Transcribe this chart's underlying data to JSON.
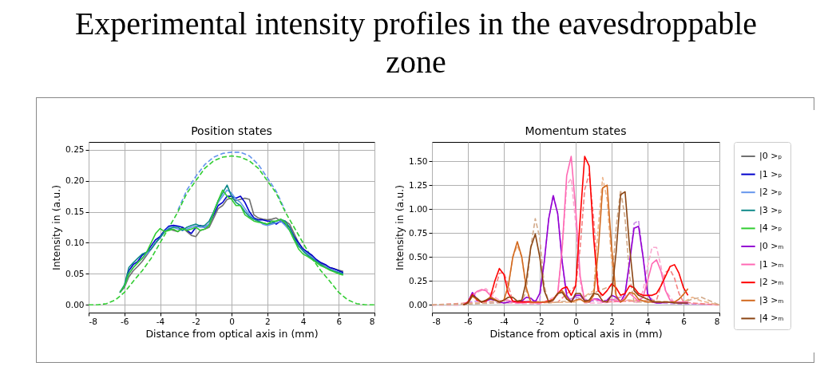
{
  "chart_data": [
    {
      "type": "line",
      "title": "Experimental intensity profiles in the eavesdroppable zone",
      "subtitle": "Position states",
      "xlabel": "Distance from optical axis in (mm)",
      "ylabel": "Intensity in (a.u.)",
      "xlim": [
        -8,
        8
      ],
      "ylim": [
        -0.0125,
        0.2625
      ],
      "xticks": [
        -8,
        -6,
        -4,
        -2,
        0,
        2,
        4,
        6,
        8
      ],
      "yticks": [
        {
          "value": 0,
          "label": "0.00"
        },
        0.05,
        {
          "value": 0.1,
          "label": "0.10"
        },
        0.15,
        {
          "value": 0.2,
          "label": "0.20"
        },
        0.25
      ],
      "grid": true,
      "x": [
        -6.25,
        -6,
        -5.75,
        -5.5,
        -5.25,
        -5,
        -4.75,
        -4.5,
        -4.25,
        -4,
        -3.75,
        -3.5,
        -3.25,
        -3,
        -2.75,
        -2.5,
        -2.25,
        -2,
        -1.75,
        -1.5,
        -1.25,
        -1,
        -0.75,
        -0.5,
        -0.25,
        0,
        0.25,
        0.5,
        0.75,
        1,
        1.25,
        1.5,
        1.75,
        2,
        2.25,
        2.5,
        2.75,
        3,
        3.25,
        3.5,
        3.75,
        4,
        4.25,
        4.5,
        4.75,
        5,
        5.25,
        5.5,
        5.75,
        6,
        6.25
      ],
      "series": [
        {
          "color": "#6495ed",
          "line_style": "dashed",
          "x": [
            -3,
            -2.5,
            -2,
            -1.5,
            -1,
            -0.5,
            0,
            0.5,
            1,
            1.5,
            2,
            2.5,
            3
          ],
          "values": [
            0.153,
            0.185,
            0.207,
            0.226,
            0.238,
            0.244,
            0.246,
            0.246,
            0.24,
            0.226,
            0.205,
            0.183,
            0.152
          ]
        },
        {
          "color": "#32cd32",
          "line_style": "dashed",
          "x": [
            -8,
            -7.5,
            -7,
            -6.5,
            -6,
            -5.5,
            -5,
            -4.5,
            -4,
            -3.5,
            -3,
            -2.5,
            -2,
            -1.5,
            -1,
            -0.5,
            0,
            0.5,
            1,
            1.5,
            2,
            2.5,
            3,
            3.5,
            4,
            4.5,
            5,
            5.5,
            6,
            6.5,
            7,
            7.5,
            8
          ],
          "values": [
            0,
            0,
            0.002,
            0.008,
            0.02,
            0.038,
            0.055,
            0.075,
            0.1,
            0.125,
            0.15,
            0.18,
            0.2,
            0.22,
            0.232,
            0.238,
            0.24,
            0.238,
            0.232,
            0.22,
            0.2,
            0.18,
            0.15,
            0.125,
            0.1,
            0.075,
            0.055,
            0.038,
            0.02,
            0.008,
            0.002,
            0,
            0
          ]
        },
        {
          "name": "|0 >ₚ",
          "color": "#707070",
          "values": [
            0.02,
            0.028,
            0.045,
            0.055,
            0.062,
            0.07,
            0.08,
            0.09,
            0.1,
            0.11,
            0.12,
            0.122,
            0.12,
            0.118,
            0.125,
            0.118,
            0.112,
            0.11,
            0.12,
            0.122,
            0.125,
            0.14,
            0.155,
            0.16,
            0.17,
            0.172,
            0.168,
            0.17,
            0.172,
            0.17,
            0.145,
            0.14,
            0.138,
            0.137,
            0.138,
            0.14,
            0.135,
            0.135,
            0.13,
            0.115,
            0.1,
            0.09,
            0.085,
            0.078,
            0.072,
            0.067,
            0.063,
            0.06,
            0.058,
            0.056,
            0.054
          ]
        },
        {
          "name": "|1 >ₚ",
          "color": "#0000cc",
          "values": [
            0.02,
            0.03,
            0.055,
            0.065,
            0.07,
            0.08,
            0.085,
            0.095,
            0.105,
            0.11,
            0.12,
            0.127,
            0.128,
            0.127,
            0.125,
            0.12,
            0.115,
            0.125,
            0.128,
            0.125,
            0.13,
            0.145,
            0.16,
            0.165,
            0.175,
            0.175,
            0.172,
            0.175,
            0.165,
            0.15,
            0.14,
            0.137,
            0.137,
            0.135,
            0.135,
            0.13,
            0.135,
            0.13,
            0.125,
            0.11,
            0.1,
            0.09,
            0.085,
            0.08,
            0.073,
            0.068,
            0.065,
            0.06,
            0.058,
            0.055,
            0.052
          ]
        },
        {
          "name": "|2 >ₚ",
          "color": "#6495ed",
          "values": [
            0.02,
            0.03,
            0.05,
            0.06,
            0.068,
            0.075,
            0.082,
            0.09,
            0.1,
            0.108,
            0.118,
            0.125,
            0.125,
            0.122,
            0.12,
            0.122,
            0.125,
            0.127,
            0.125,
            0.125,
            0.13,
            0.15,
            0.165,
            0.175,
            0.185,
            0.18,
            0.17,
            0.165,
            0.155,
            0.145,
            0.138,
            0.135,
            0.13,
            0.128,
            0.13,
            0.132,
            0.135,
            0.128,
            0.12,
            0.105,
            0.095,
            0.088,
            0.082,
            0.077,
            0.07,
            0.065,
            0.062,
            0.058,
            0.055,
            0.052,
            0.05
          ]
        },
        {
          "name": "|3 >ₚ",
          "color": "#108a8a",
          "values": [
            0.02,
            0.032,
            0.06,
            0.068,
            0.075,
            0.082,
            0.085,
            0.09,
            0.1,
            0.108,
            0.118,
            0.122,
            0.125,
            0.125,
            0.12,
            0.125,
            0.128,
            0.13,
            0.127,
            0.128,
            0.135,
            0.15,
            0.168,
            0.18,
            0.193,
            0.175,
            0.165,
            0.16,
            0.15,
            0.142,
            0.138,
            0.135,
            0.132,
            0.13,
            0.132,
            0.135,
            0.138,
            0.135,
            0.125,
            0.108,
            0.095,
            0.087,
            0.08,
            0.075,
            0.07,
            0.065,
            0.06,
            0.057,
            0.054,
            0.052,
            0.05
          ]
        },
        {
          "name": "|4 >ₚ",
          "color": "#32cd32",
          "values": [
            0.02,
            0.03,
            0.05,
            0.06,
            0.068,
            0.075,
            0.085,
            0.1,
            0.115,
            0.123,
            0.118,
            0.12,
            0.122,
            0.118,
            0.123,
            0.12,
            0.122,
            0.125,
            0.12,
            0.122,
            0.128,
            0.148,
            0.168,
            0.185,
            0.175,
            0.17,
            0.16,
            0.16,
            0.145,
            0.14,
            0.135,
            0.133,
            0.132,
            0.13,
            0.135,
            0.135,
            0.138,
            0.132,
            0.12,
            0.105,
            0.09,
            0.082,
            0.078,
            0.073,
            0.068,
            0.063,
            0.06,
            0.056,
            0.053,
            0.05,
            0.048
          ]
        }
      ]
    },
    {
      "type": "line",
      "title": "Momentum states",
      "xlabel": "Distance from optical axis in (mm)",
      "ylabel": "Intensity in (a.u.)",
      "xlim": [
        -8,
        8
      ],
      "ylim": [
        -0.08,
        1.7
      ],
      "xticks": [
        -8,
        -6,
        -4,
        -2,
        0,
        2,
        4,
        6,
        8
      ],
      "yticks": [
        {
          "value": 0,
          "label": "0.00"
        },
        0.25,
        {
          "value": 0.5,
          "label": "0.50"
        },
        0.75,
        {
          "value": 1,
          "label": "1.00"
        },
        1.25,
        {
          "value": 1.5,
          "label": "1.50"
        }
      ],
      "grid": true,
      "legend": "right",
      "x": [
        -6.25,
        -6,
        -5.75,
        -5.5,
        -5.25,
        -5,
        -4.75,
        -4.5,
        -4.25,
        -4,
        -3.75,
        -3.5,
        -3.25,
        -3,
        -2.75,
        -2.5,
        -2.25,
        -2,
        -1.75,
        -1.5,
        -1.25,
        -1,
        -0.75,
        -0.5,
        -0.25,
        0,
        0.25,
        0.5,
        0.75,
        1,
        1.25,
        1.5,
        1.75,
        2,
        2.25,
        2.5,
        2.75,
        3,
        3.25,
        3.5,
        3.75,
        4,
        4.25,
        4.5,
        4.75,
        5,
        5.25,
        5.5,
        5.75,
        6,
        6.25
      ],
      "series": [
        {
          "color": "#c98be6",
          "line_style": "dashed",
          "x": [
            -8,
            -6.5,
            -6,
            -5.5,
            -4,
            -2,
            -1.75,
            -1.5,
            -1.25,
            -1,
            -0.75,
            -0.5,
            0,
            1,
            2,
            2.75,
            3,
            3.25,
            3.5,
            3.75,
            4,
            4.5,
            6,
            8
          ],
          "values": [
            0,
            0,
            0.03,
            0.04,
            0.02,
            0.05,
            0.45,
            0.9,
            1.15,
            0.95,
            0.45,
            0.05,
            0.08,
            0.04,
            0.05,
            0.1,
            0.45,
            0.85,
            0.88,
            0.5,
            0.1,
            0.02,
            0.01,
            0
          ]
        },
        {
          "color": "#f9a8cf",
          "line_style": "dashed",
          "x": [
            -8,
            -6.5,
            -6,
            -5.5,
            -5,
            -4.5,
            -4,
            -2,
            -1,
            -0.75,
            -0.5,
            -0.25,
            0,
            0.25,
            0.5,
            1.5,
            3,
            3.5,
            3.75,
            4,
            4.25,
            4.5,
            4.75,
            5,
            5.5,
            6,
            8
          ],
          "values": [
            0,
            0,
            0.03,
            0.13,
            0.17,
            0.08,
            0.02,
            0.01,
            0.1,
            0.6,
            1.25,
            1.32,
            0.85,
            0.25,
            0.02,
            0.02,
            0.05,
            0.02,
            0.15,
            0.4,
            0.6,
            0.6,
            0.4,
            0.15,
            0.02,
            0.02,
            0
          ]
        },
        {
          "color": "#f48080",
          "line_style": "dashed",
          "x": [
            -8,
            -6,
            -5,
            -4.5,
            -4.25,
            -4,
            -3.75,
            -3.5,
            -1,
            0,
            0.25,
            0.5,
            0.75,
            1,
            1.25,
            1.5,
            4.5,
            4.75,
            5,
            5.25,
            5.5,
            5.75,
            6,
            6.5,
            8
          ],
          "values": [
            0,
            0.02,
            0.02,
            0.15,
            0.33,
            0.34,
            0.2,
            0.04,
            0.03,
            0.2,
            0.6,
            1.2,
            1.37,
            0.9,
            0.2,
            0.03,
            0.05,
            0.2,
            0.34,
            0.37,
            0.28,
            0.12,
            0.03,
            0.02,
            0
          ]
        },
        {
          "color": "#eeb58a",
          "line_style": "dashed",
          "x": [
            -8,
            -6,
            -4,
            -3.75,
            -3.5,
            -3.25,
            -3,
            -2.75,
            -2.5,
            0,
            1,
            1.25,
            1.5,
            1.75,
            2,
            2.25,
            3,
            6,
            6.5,
            7,
            8
          ],
          "values": [
            0,
            0.01,
            0.05,
            0.2,
            0.5,
            0.62,
            0.5,
            0.15,
            0.02,
            0.03,
            0.15,
            0.8,
            1.33,
            1.1,
            0.45,
            0.05,
            0.05,
            0.03,
            0.08,
            0.04,
            0
          ]
        },
        {
          "color": "#d2aa8a",
          "line_style": "dashed",
          "x": [
            -8,
            -6,
            -3,
            -2.75,
            -2.5,
            -2.25,
            -2,
            -1.75,
            -1.5,
            0,
            2,
            2.25,
            2.5,
            2.75,
            3,
            3.25,
            6,
            6.5,
            7,
            7.5,
            8
          ],
          "values": [
            0,
            0.01,
            0.03,
            0.15,
            0.6,
            0.9,
            0.7,
            0.2,
            0.02,
            0.05,
            0.2,
            0.8,
            1.2,
            0.9,
            0.3,
            0.03,
            0.03,
            0.06,
            0.08,
            0.04,
            0
          ]
        },
        {
          "name": "|0 >ₘ",
          "color": "#9400d3",
          "values": [
            0,
            0.03,
            0.13,
            0.06,
            0.03,
            0.04,
            0.06,
            0.05,
            0.03,
            0.02,
            0.03,
            0.04,
            0.03,
            0.04,
            0.08,
            0.07,
            0.03,
            0.12,
            0.45,
            0.9,
            1.14,
            0.95,
            0.45,
            0.1,
            0.03,
            0.1,
            0.1,
            0.05,
            0.03,
            0.06,
            0.06,
            0.03,
            0.05,
            0.1,
            0.08,
            0.03,
            0.12,
            0.45,
            0.8,
            0.82,
            0.5,
            0.12,
            0.03,
            0.02,
            0.02,
            0.03,
            0.03,
            0.03,
            0.02,
            0.02,
            0.02
          ]
        },
        {
          "name": "|1 >ₘ",
          "color": "#ff69b4",
          "values": [
            0,
            0.02,
            0.1,
            0.14,
            0.16,
            0.15,
            0.1,
            0.05,
            0.03,
            0.05,
            0.05,
            0.03,
            0.02,
            0.02,
            0.03,
            0.03,
            0.02,
            0.02,
            0.03,
            0.03,
            0.05,
            0.12,
            0.6,
            1.35,
            1.55,
            1.0,
            0.3,
            0.04,
            0.04,
            0.06,
            0.05,
            0.03,
            0.04,
            0.06,
            0.04,
            0.03,
            0.08,
            0.12,
            0.08,
            0.04,
            0.08,
            0.25,
            0.43,
            0.47,
            0.35,
            0.15,
            0.05,
            0.03,
            0.03,
            0.03,
            0.03
          ]
        },
        {
          "name": "|2 >ₘ",
          "color": "#ff0000",
          "values": [
            0,
            0.03,
            0.11,
            0.05,
            0.03,
            0.04,
            0.08,
            0.25,
            0.38,
            0.32,
            0.12,
            0.04,
            0.03,
            0.03,
            0.03,
            0.03,
            0.03,
            0.03,
            0.03,
            0.04,
            0.06,
            0.12,
            0.17,
            0.19,
            0.1,
            0.2,
            0.9,
            1.55,
            1.45,
            0.7,
            0.15,
            0.1,
            0.15,
            0.22,
            0.18,
            0.1,
            0.12,
            0.2,
            0.18,
            0.12,
            0.1,
            0.1,
            0.1,
            0.12,
            0.2,
            0.3,
            0.4,
            0.42,
            0.33,
            0.18,
            0.1
          ]
        },
        {
          "name": "|3 >ₘ",
          "color": "#d2691e",
          "values": [
            0,
            0.02,
            0.09,
            0.06,
            0.03,
            0.05,
            0.08,
            0.06,
            0.03,
            0.05,
            0.2,
            0.5,
            0.66,
            0.5,
            0.18,
            0.03,
            0.03,
            0.03,
            0.03,
            0.03,
            0.06,
            0.12,
            0.15,
            0.08,
            0.03,
            0.05,
            0.06,
            0.03,
            0.03,
            0.1,
            0.55,
            1.22,
            1.25,
            0.6,
            0.1,
            0.03,
            0.06,
            0.13,
            0.12,
            0.06,
            0.04,
            0.03,
            0.03,
            0.03,
            0.03,
            0.03,
            0.03,
            0.03,
            0.06,
            0.11,
            0.17
          ]
        },
        {
          "name": "|4 >ₘ",
          "color": "#8b4513",
          "values": [
            0,
            0.02,
            0.1,
            0.07,
            0.03,
            0.05,
            0.07,
            0.05,
            0.03,
            0.05,
            0.08,
            0.08,
            0.04,
            0.05,
            0.25,
            0.6,
            0.74,
            0.5,
            0.15,
            0.03,
            0.05,
            0.12,
            0.13,
            0.06,
            0.03,
            0.12,
            0.12,
            0.04,
            0.05,
            0.12,
            0.11,
            0.04,
            0.03,
            0.1,
            0.55,
            1.15,
            1.18,
            0.6,
            0.15,
            0.1,
            0.08,
            0.06,
            0.04,
            0.03,
            0.03,
            0.03,
            0.03,
            0.02,
            0.02,
            0.02,
            0.02
          ]
        }
      ]
    }
  ]
}
